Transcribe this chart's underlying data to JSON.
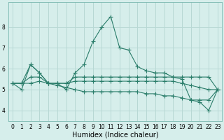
{
  "xlabel": "Humidex (Indice chaleur)",
  "x": [
    0,
    1,
    2,
    3,
    4,
    5,
    6,
    7,
    8,
    9,
    10,
    11,
    12,
    13,
    14,
    15,
    16,
    17,
    18,
    19,
    20,
    21,
    22,
    23
  ],
  "series": [
    [
      5.3,
      5.0,
      6.2,
      5.8,
      5.3,
      5.3,
      5.0,
      5.8,
      6.2,
      7.3,
      8.0,
      8.5,
      7.0,
      6.9,
      6.1,
      5.9,
      5.8,
      5.8,
      5.6,
      5.5,
      4.5,
      4.4,
      4.0,
      5.0
    ],
    [
      5.3,
      5.3,
      6.2,
      5.8,
      5.3,
      5.3,
      5.3,
      5.6,
      5.6,
      5.6,
      5.6,
      5.6,
      5.6,
      5.6,
      5.6,
      5.6,
      5.6,
      5.6,
      5.6,
      5.6,
      5.6,
      5.6,
      5.6,
      5.0
    ],
    [
      5.3,
      5.3,
      5.6,
      5.6,
      5.3,
      5.3,
      5.3,
      5.4,
      5.4,
      5.4,
      5.4,
      5.4,
      5.4,
      5.4,
      5.4,
      5.4,
      5.4,
      5.4,
      5.4,
      5.3,
      5.2,
      5.1,
      5.0,
      5.0
    ],
    [
      5.3,
      5.3,
      5.3,
      5.4,
      5.3,
      5.2,
      5.1,
      5.0,
      4.9,
      4.9,
      4.9,
      4.9,
      4.9,
      4.9,
      4.9,
      4.8,
      4.8,
      4.7,
      4.7,
      4.6,
      4.5,
      4.5,
      4.5,
      5.0
    ]
  ],
  "line_color": "#2a7d6a",
  "bg_color": "#d6eeeb",
  "grid_color": "#b8d8d4",
  "ylim": [
    3.5,
    9.2
  ],
  "yticks": [
    4,
    5,
    6,
    7,
    8
  ],
  "xticks": [
    0,
    1,
    2,
    3,
    4,
    5,
    6,
    7,
    8,
    9,
    10,
    11,
    12,
    13,
    14,
    15,
    16,
    17,
    18,
    19,
    20,
    21,
    22,
    23
  ],
  "marker": "+",
  "markersize": 4,
  "linewidth": 0.8,
  "tick_fontsize": 5.5,
  "xlabel_fontsize": 7
}
